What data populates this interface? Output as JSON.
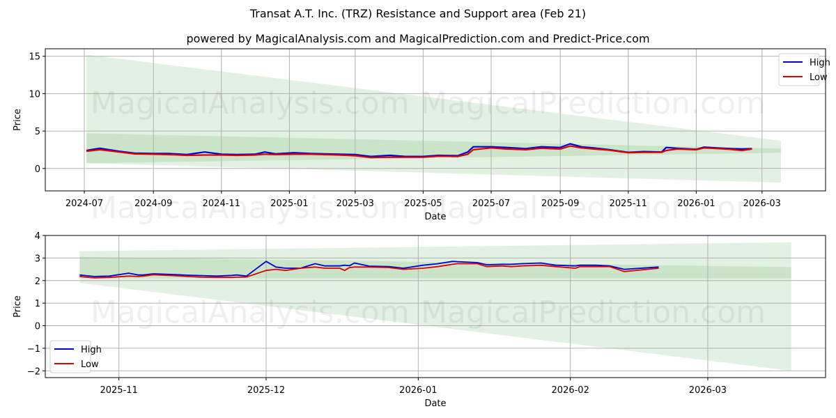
{
  "title": "Transat A.T. Inc. (TRZ) Resistance and Support area (Feb 21)",
  "subtitle": "powered by MagicalAnalysis.com and MagicalPrediction.com and Predict-Price.com",
  "watermarks": [
    "MagicalAnalysis.com",
    "MagicalPrediction.com"
  ],
  "colors": {
    "high": "#0000cc",
    "low": "#dd0000",
    "band_light": "#d4e9d4",
    "band_dark": "#b5d8b5",
    "grid": "#b0b0b0"
  },
  "chart_data": [
    {
      "type": "line",
      "title": "",
      "xlabel": "Date",
      "ylabel": "Price",
      "ylim": [
        -3,
        16
      ],
      "yticks": [
        0,
        5,
        10,
        15
      ],
      "xticks": [
        "2024-07",
        "2024-09",
        "2024-11",
        "2025-01",
        "2025-03",
        "2025-05",
        "2025-07",
        "2025-09",
        "2025-11",
        "2026-01",
        "2026-03"
      ],
      "grid": true,
      "legend": {
        "position": "upper right",
        "entries": [
          "High",
          "Low"
        ]
      },
      "x": [
        "2024-07-03",
        "2024-07-15",
        "2024-08-01",
        "2024-08-15",
        "2024-09-01",
        "2024-09-15",
        "2024-10-01",
        "2024-10-17",
        "2024-11-01",
        "2024-11-15",
        "2024-12-01",
        "2024-12-10",
        "2024-12-20",
        "2025-01-05",
        "2025-01-20",
        "2025-02-01",
        "2025-02-15",
        "2025-03-01",
        "2025-03-15",
        "2025-04-01",
        "2025-04-15",
        "2025-05-01",
        "2025-05-15",
        "2025-06-01",
        "2025-06-10",
        "2025-06-15",
        "2025-07-01",
        "2025-07-15",
        "2025-08-01",
        "2025-08-15",
        "2025-09-01",
        "2025-09-10",
        "2025-09-20",
        "2025-10-01",
        "2025-10-15",
        "2025-11-01",
        "2025-11-15",
        "2025-12-01",
        "2025-12-05",
        "2025-12-15",
        "2026-01-01",
        "2026-01-08",
        "2026-01-20",
        "2026-02-01",
        "2026-02-11",
        "2026-02-20"
      ],
      "series": [
        {
          "name": "High",
          "values": [
            2.4,
            2.7,
            2.3,
            2.05,
            2.0,
            2.0,
            1.85,
            2.2,
            1.9,
            1.85,
            1.9,
            2.2,
            1.95,
            2.1,
            2.0,
            1.95,
            1.9,
            1.85,
            1.6,
            1.75,
            1.6,
            1.6,
            1.75,
            1.7,
            2.2,
            2.9,
            2.9,
            2.8,
            2.65,
            2.9,
            2.8,
            3.3,
            2.9,
            2.75,
            2.5,
            2.15,
            2.25,
            2.2,
            2.8,
            2.7,
            2.55,
            2.85,
            2.75,
            2.65,
            2.6,
            2.65
          ]
        },
        {
          "name": "Low",
          "values": [
            2.3,
            2.5,
            2.2,
            1.95,
            1.9,
            1.85,
            1.75,
            1.8,
            1.8,
            1.75,
            1.8,
            1.9,
            1.85,
            1.9,
            1.9,
            1.85,
            1.8,
            1.7,
            1.45,
            1.5,
            1.5,
            1.5,
            1.65,
            1.6,
            1.9,
            2.5,
            2.75,
            2.6,
            2.5,
            2.7,
            2.6,
            3.0,
            2.75,
            2.6,
            2.45,
            2.1,
            2.15,
            2.15,
            2.4,
            2.6,
            2.5,
            2.75,
            2.65,
            2.55,
            2.4,
            2.6
          ]
        }
      ],
      "bands": {
        "x_start": "2024-07-03",
        "x_end": "2026-03-18",
        "outer_top": [
          15.2,
          3.7
        ],
        "outer_bottom": [
          0.7,
          -1.9
        ],
        "inner_top": [
          4.7,
          2.65
        ],
        "inner_bottom": [
          0.7,
          2.1
        ]
      }
    },
    {
      "type": "line",
      "title": "",
      "xlabel": "Date",
      "ylabel": "Price",
      "ylim": [
        -2.3,
        4.0
      ],
      "yticks": [
        -2,
        -1,
        0,
        1,
        2,
        3,
        4
      ],
      "xticks": [
        "2025-11",
        "2025-12",
        "2026-01",
        "2026-02",
        "2026-03"
      ],
      "grid": true,
      "legend": {
        "position": "lower left",
        "entries": [
          "High",
          "Low"
        ]
      },
      "x": [
        "2025-10-24",
        "2025-10-27",
        "2025-10-30",
        "2025-11-03",
        "2025-11-05",
        "2025-11-06",
        "2025-11-08",
        "2025-11-12",
        "2025-11-15",
        "2025-11-18",
        "2025-11-21",
        "2025-11-24",
        "2025-11-25",
        "2025-11-27",
        "2025-12-01",
        "2025-12-03",
        "2025-12-05",
        "2025-12-08",
        "2025-12-11",
        "2025-12-13",
        "2025-12-16",
        "2025-12-17",
        "2025-12-18",
        "2025-12-19",
        "2025-12-22",
        "2025-12-26",
        "2025-12-29",
        "2026-01-02",
        "2026-01-05",
        "2026-01-08",
        "2026-01-09",
        "2026-01-13",
        "2026-01-15",
        "2026-01-18",
        "2026-01-20",
        "2026-01-22",
        "2026-01-26",
        "2026-01-29",
        "2026-02-02",
        "2026-02-03",
        "2026-02-06",
        "2026-02-09",
        "2026-02-12",
        "2026-02-19"
      ],
      "series": [
        {
          "name": "High",
          "values": [
            2.25,
            2.18,
            2.2,
            2.33,
            2.25,
            2.25,
            2.3,
            2.27,
            2.24,
            2.22,
            2.2,
            2.23,
            2.25,
            2.2,
            2.85,
            2.6,
            2.55,
            2.55,
            2.75,
            2.65,
            2.65,
            2.68,
            2.66,
            2.78,
            2.64,
            2.62,
            2.55,
            2.68,
            2.75,
            2.85,
            2.84,
            2.8,
            2.7,
            2.72,
            2.72,
            2.75,
            2.78,
            2.68,
            2.65,
            2.68,
            2.68,
            2.65,
            2.5,
            2.6
          ]
        },
        {
          "name": "Low",
          "values": [
            2.18,
            2.12,
            2.14,
            2.2,
            2.18,
            2.2,
            2.26,
            2.22,
            2.18,
            2.15,
            2.14,
            2.14,
            2.15,
            2.16,
            2.45,
            2.5,
            2.45,
            2.55,
            2.6,
            2.55,
            2.55,
            2.45,
            2.58,
            2.6,
            2.6,
            2.58,
            2.5,
            2.55,
            2.62,
            2.72,
            2.75,
            2.75,
            2.62,
            2.65,
            2.62,
            2.65,
            2.68,
            2.62,
            2.55,
            2.62,
            2.62,
            2.62,
            2.4,
            2.55
          ]
        }
      ],
      "bands": {
        "x_start": "2025-10-24",
        "x_end": "2026-03-18",
        "outer_top": [
          3.3,
          3.7
        ],
        "outer_bottom": [
          1.9,
          -2.0
        ],
        "inner_top": [
          3.05,
          2.6
        ],
        "inner_bottom": [
          2.1,
          2.1
        ]
      }
    }
  ]
}
